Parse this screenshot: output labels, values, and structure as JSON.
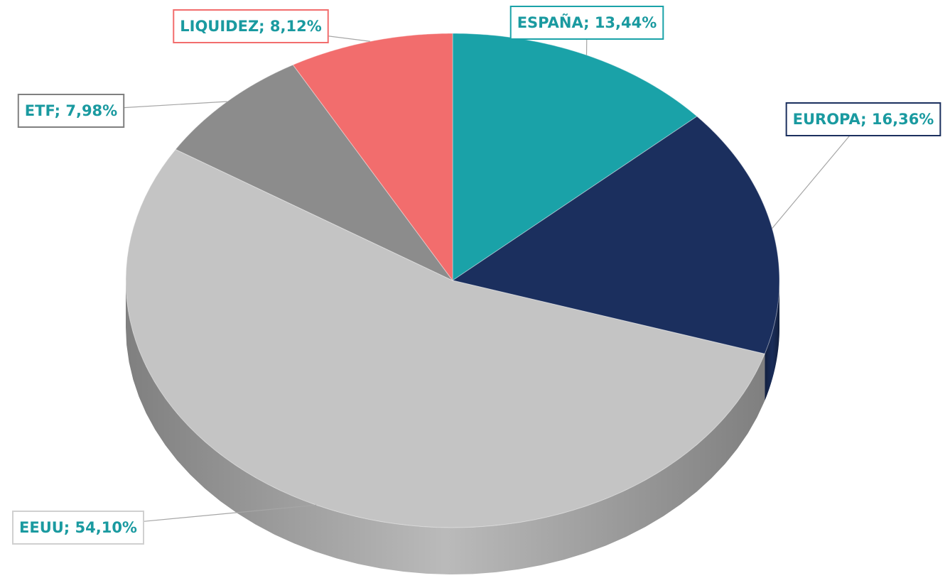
{
  "chart_data": {
    "type": "pie",
    "values": [
      13.44,
      16.36,
      54.1,
      7.98,
      8.12
    ],
    "value_labels": [
      "ESPAÑA; 13,44%",
      "EUROPA; 16,36%",
      "EEUU; 54,10%",
      "ETF; 7,98%",
      "LIQUIDEZ; 8,12%"
    ],
    "colors": [
      "#1aa2a8",
      "#1b2f5e",
      "#c4c4c4",
      "#8c8c8c",
      "#f26d6d"
    ],
    "label_color": "#1a9aa0",
    "label_borders": [
      "#1aa2a8",
      "#1b2f5e",
      "#d0d0d0",
      "#808080",
      "#f26d6d"
    ]
  }
}
